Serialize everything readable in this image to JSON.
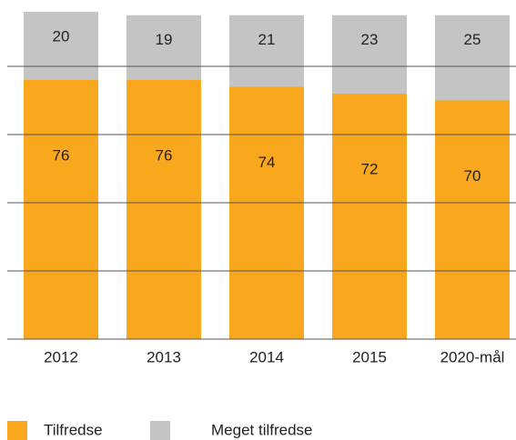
{
  "chart_data": {
    "type": "stacked_bar",
    "categories": [
      "2012",
      "2013",
      "2014",
      "2015",
      "2020-mål"
    ],
    "series": [
      {
        "name": "Tilfredse",
        "color": "#f9a81e",
        "values": [
          76,
          76,
          74,
          72,
          70
        ]
      },
      {
        "name": "Meget tilfredse",
        "color": "#c4c4c4",
        "values": [
          20,
          19,
          21,
          23,
          25
        ]
      }
    ],
    "ylim": [
      0,
      100
    ],
    "yticks": [
      0,
      20,
      40,
      60,
      80
    ],
    "grid": true
  }
}
